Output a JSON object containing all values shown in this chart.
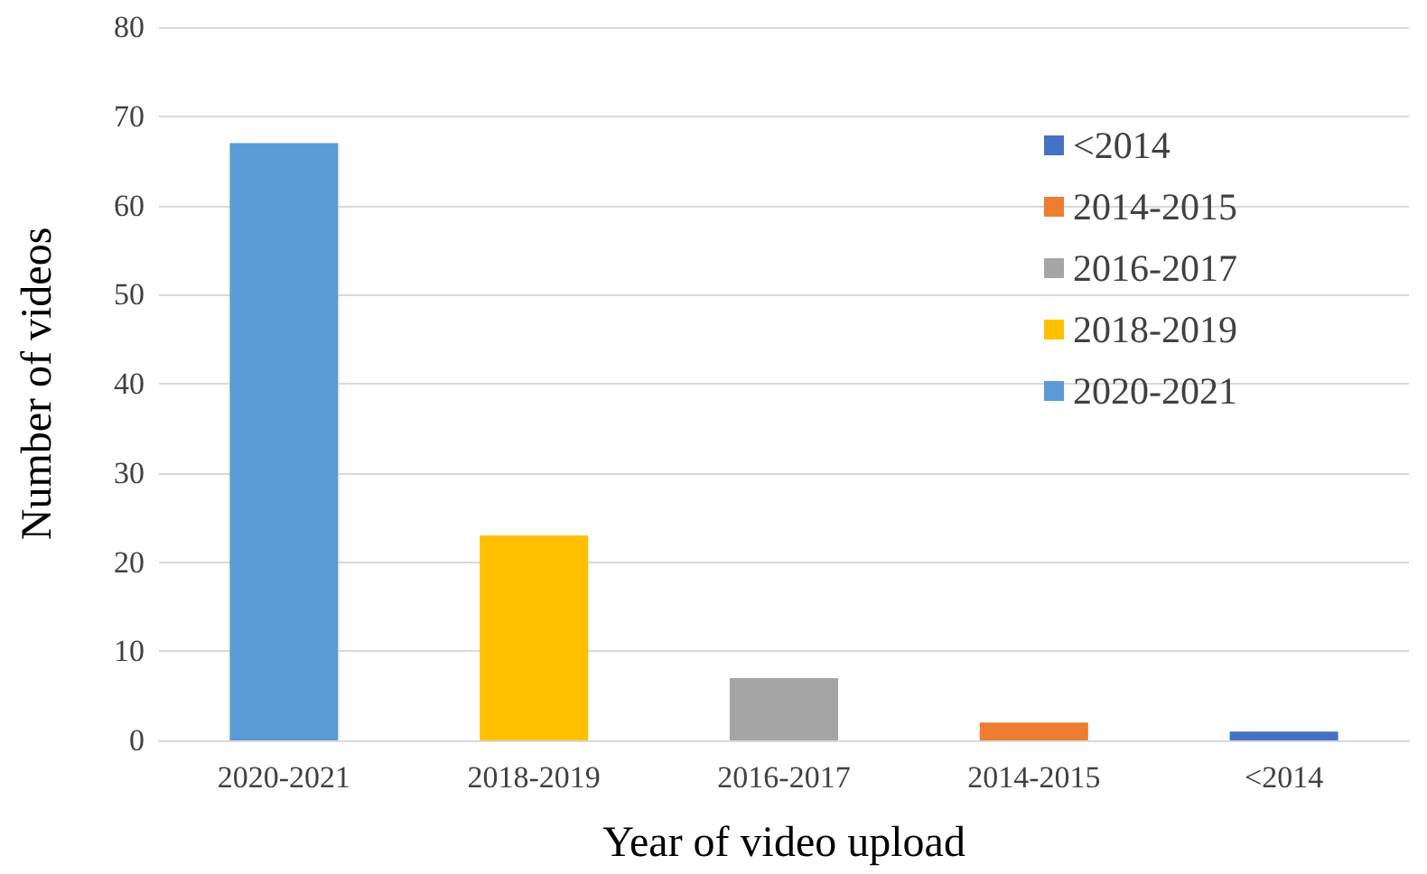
{
  "chart_data": {
    "type": "bar",
    "xlabel": "Year of video upload",
    "ylabel": "Number of videos",
    "categories": [
      "2020-2021",
      "2018-2019",
      "2016-2017",
      "2014-2015",
      "<2014"
    ],
    "series": [
      {
        "name": "<2014",
        "color": "#4472c4",
        "values": [
          null,
          null,
          null,
          null,
          1
        ]
      },
      {
        "name": "2014-2015",
        "color": "#ed7d31",
        "values": [
          null,
          null,
          null,
          2,
          null
        ]
      },
      {
        "name": "2016-2017",
        "color": "#a5a5a5",
        "values": [
          null,
          null,
          7,
          null,
          null
        ]
      },
      {
        "name": "2018-2019",
        "color": "#ffc000",
        "values": [
          null,
          23,
          null,
          null,
          null
        ]
      },
      {
        "name": "2020-2021",
        "color": "#5b9bd5",
        "values": [
          67,
          null,
          null,
          null,
          null
        ]
      }
    ],
    "ylim": [
      0,
      80
    ],
    "yticks": [
      0,
      10,
      20,
      30,
      40,
      50,
      60,
      70,
      80
    ],
    "grid": "y",
    "legend": "right"
  }
}
